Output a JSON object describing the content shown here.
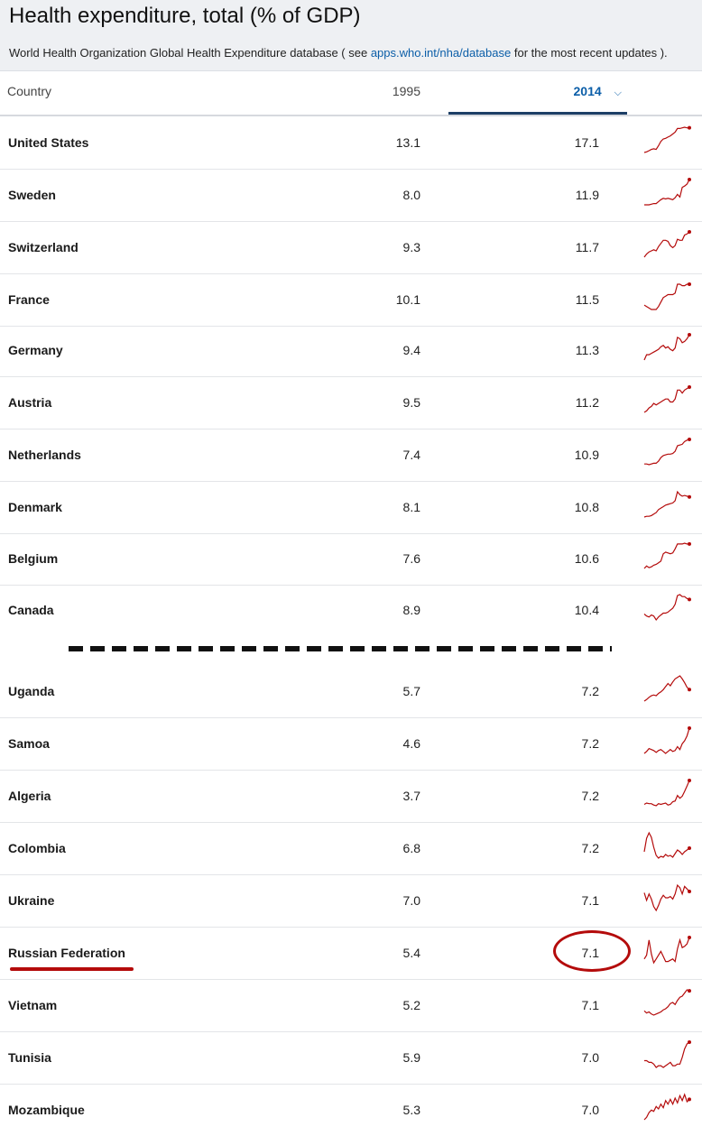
{
  "header": {
    "title": "Health expenditure, total (% of GDP)",
    "source_prefix": "World Health Organization Global Health Expenditure database ( see ",
    "source_link": "apps.who.int/nha/database",
    "source_suffix": " for the most recent updates )."
  },
  "table": {
    "col_country": "Country",
    "col_year1": "1995",
    "col_year2": "2014",
    "sort_icon": "chevron-down-icon",
    "top_rows": [
      {
        "country": "United States",
        "v1995": "13.1",
        "v2014": "17.1",
        "spark": [
          13.1,
          13.2,
          13.4,
          13.6,
          13.7,
          13.6,
          14.2,
          14.9,
          15.3,
          15.4,
          15.6,
          15.8,
          16.1,
          16.4,
          17.0,
          17.0,
          17.1,
          17.2,
          17.1,
          17.1
        ]
      },
      {
        "country": "Sweden",
        "v1995": "8.0",
        "v2014": "11.9",
        "spark": [
          8.0,
          8.0,
          8.0,
          8.1,
          8.2,
          8.2,
          8.5,
          8.8,
          9.0,
          8.9,
          9.0,
          8.9,
          8.8,
          9.1,
          9.6,
          9.2,
          10.7,
          10.9,
          11.2,
          11.9
        ]
      },
      {
        "country": "Switzerland",
        "v1995": "9.3",
        "v2014": "11.7",
        "spark": [
          9.3,
          9.6,
          9.8,
          9.9,
          10.0,
          9.9,
          10.3,
          10.6,
          10.9,
          10.9,
          10.8,
          10.4,
          10.2,
          10.4,
          11.0,
          10.9,
          10.9,
          11.4,
          11.5,
          11.7
        ]
      },
      {
        "country": "France",
        "v1995": "10.1",
        "v2014": "11.5",
        "spark": [
          10.1,
          10.0,
          9.9,
          9.8,
          9.8,
          9.8,
          10.0,
          10.3,
          10.6,
          10.7,
          10.8,
          10.8,
          10.8,
          10.9,
          11.5,
          11.5,
          11.4,
          11.4,
          11.5,
          11.5
        ]
      },
      {
        "country": "Germany",
        "v1995": "9.4",
        "v2014": "11.3",
        "spark": [
          9.4,
          9.8,
          9.8,
          9.9,
          10.0,
          10.1,
          10.2,
          10.4,
          10.5,
          10.3,
          10.4,
          10.2,
          10.1,
          10.3,
          11.1,
          11.0,
          10.7,
          10.8,
          11.0,
          11.3
        ]
      },
      {
        "country": "Austria",
        "v1995": "9.5",
        "v2014": "11.2",
        "spark": [
          9.5,
          9.6,
          9.8,
          9.9,
          10.1,
          10.0,
          10.1,
          10.2,
          10.3,
          10.4,
          10.4,
          10.2,
          10.2,
          10.4,
          11.0,
          11.0,
          10.8,
          11.0,
          11.1,
          11.2
        ]
      },
      {
        "country": "Netherlands",
        "v1995": "7.4",
        "v2014": "10.9",
        "spark": [
          7.4,
          7.4,
          7.3,
          7.4,
          7.5,
          7.5,
          7.8,
          8.3,
          8.6,
          8.7,
          8.8,
          8.8,
          8.9,
          9.2,
          10.0,
          10.1,
          10.2,
          10.6,
          10.8,
          10.9
        ]
      },
      {
        "country": "Denmark",
        "v1995": "8.1",
        "v2014": "10.8",
        "spark": [
          8.1,
          8.2,
          8.2,
          8.3,
          8.5,
          8.7,
          9.1,
          9.3,
          9.5,
          9.7,
          9.8,
          9.9,
          10.0,
          10.3,
          11.5,
          11.1,
          10.9,
          11.0,
          10.9,
          10.8
        ]
      },
      {
        "country": "Belgium",
        "v1995": "7.6",
        "v2014": "10.6",
        "spark": [
          7.6,
          7.9,
          7.7,
          7.8,
          8.0,
          8.1,
          8.3,
          8.5,
          9.4,
          9.6,
          9.5,
          9.4,
          9.5,
          10.0,
          10.6,
          10.6,
          10.6,
          10.7,
          10.6,
          10.6
        ]
      },
      {
        "country": "Canada",
        "v1995": "8.9",
        "v2014": "10.4",
        "spark": [
          8.9,
          8.7,
          8.6,
          8.8,
          8.7,
          8.3,
          8.6,
          8.8,
          9.0,
          9.0,
          9.1,
          9.3,
          9.5,
          9.9,
          10.8,
          10.9,
          10.7,
          10.7,
          10.5,
          10.4
        ]
      }
    ],
    "bottom_rows": [
      {
        "country": "Uganda",
        "v1995": "5.7",
        "v2014": "7.2",
        "spark": [
          5.7,
          5.9,
          6.2,
          6.4,
          6.5,
          6.4,
          6.7,
          6.9,
          7.2,
          7.6,
          8.0,
          7.7,
          8.2,
          8.6,
          8.8,
          9.0,
          8.6,
          8.1,
          7.5,
          7.2
        ]
      },
      {
        "country": "Samoa",
        "v1995": "4.6",
        "v2014": "7.2",
        "spark": [
          4.6,
          4.8,
          5.1,
          5.0,
          4.9,
          4.7,
          4.9,
          5.0,
          4.8,
          4.6,
          4.8,
          5.0,
          4.8,
          4.9,
          5.3,
          5.0,
          5.6,
          5.9,
          6.4,
          7.2
        ]
      },
      {
        "country": "Algeria",
        "v1995": "3.7",
        "v2014": "7.2",
        "spark": [
          3.7,
          3.9,
          3.8,
          3.8,
          3.6,
          3.5,
          3.8,
          3.7,
          3.8,
          3.9,
          3.6,
          3.7,
          4.1,
          4.2,
          5.0,
          4.6,
          4.9,
          5.6,
          6.4,
          7.2
        ]
      },
      {
        "country": "Colombia",
        "v1995": "6.8",
        "v2014": "7.2",
        "spark": [
          6.8,
          8.3,
          8.9,
          8.4,
          7.3,
          6.4,
          6.1,
          6.3,
          6.2,
          6.5,
          6.3,
          6.4,
          6.2,
          6.6,
          7.0,
          6.8,
          6.5,
          6.8,
          7.0,
          7.2
        ]
      },
      {
        "country": "Ukraine",
        "v1995": "7.0",
        "v2014": "7.1",
        "spark": [
          7.0,
          6.4,
          6.9,
          6.5,
          5.9,
          5.6,
          6.0,
          6.5,
          6.8,
          6.6,
          6.6,
          6.7,
          6.5,
          6.9,
          7.6,
          7.4,
          6.9,
          7.5,
          7.3,
          7.1
        ]
      },
      {
        "country": "Russian Federation",
        "v1995": "5.4",
        "v2014": "7.1",
        "spark": [
          5.4,
          5.7,
          6.9,
          5.8,
          5.1,
          5.4,
          5.7,
          6.0,
          5.6,
          5.2,
          5.2,
          5.3,
          5.4,
          5.2,
          6.2,
          6.9,
          6.3,
          6.4,
          6.6,
          7.1
        ]
      },
      {
        "country": "Vietnam",
        "v1995": "5.2",
        "v2014": "7.1",
        "spark": [
          5.2,
          5.0,
          5.1,
          4.9,
          4.8,
          4.9,
          5.0,
          5.1,
          5.3,
          5.4,
          5.6,
          5.9,
          6.0,
          5.8,
          6.2,
          6.5,
          6.6,
          6.9,
          7.2,
          7.1
        ]
      },
      {
        "country": "Tunisia",
        "v1995": "5.9",
        "v2014": "7.0",
        "spark": [
          5.9,
          5.9,
          5.8,
          5.8,
          5.7,
          5.5,
          5.6,
          5.6,
          5.5,
          5.6,
          5.7,
          5.8,
          5.6,
          5.6,
          5.7,
          5.7,
          6.1,
          6.6,
          6.9,
          7.0
        ]
      },
      {
        "country": "Mozambique",
        "v1995": "5.3",
        "v2014": "7.0",
        "spark": [
          5.3,
          5.5,
          5.9,
          6.1,
          6.0,
          6.4,
          6.2,
          6.6,
          6.3,
          6.9,
          6.6,
          7.0,
          6.6,
          7.1,
          6.7,
          7.3,
          6.9,
          7.4,
          6.8,
          7.0
        ]
      }
    ]
  },
  "annotations": {
    "highlight_color": "#b40b0b",
    "sparkline_color": "#b40b0b",
    "divider_color": "#111111",
    "highlighted_country": "Russian Federation",
    "highlighted_value": "7.1"
  }
}
